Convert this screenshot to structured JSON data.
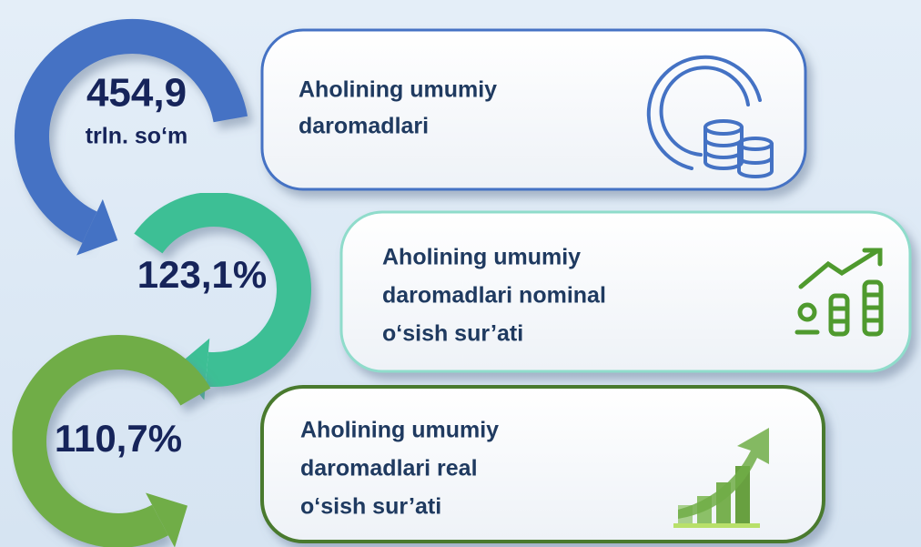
{
  "items": [
    {
      "value": "454,9",
      "unit": "trln. so‘m",
      "label_lines": [
        "Aholining umumiy",
        "daromadlari"
      ]
    },
    {
      "value": "123,1%",
      "label_lines": [
        "Aholining  umumiy",
        "daromadlari nominal",
        "o‘sish sur’ati"
      ]
    },
    {
      "value": "110,7%",
      "label_lines": [
        "Aholining umumiy",
        "daromadlari real",
        "o‘sish sur’ati"
      ]
    }
  ]
}
